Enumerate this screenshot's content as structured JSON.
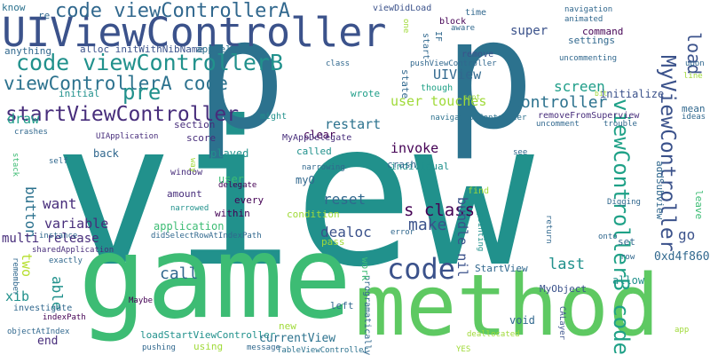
{
  "words": [
    {
      "text": "view",
      "color": "#21918c"
    },
    {
      "text": "game",
      "color": "#3dbc74"
    },
    {
      "text": "p",
      "color": "#2c728e"
    },
    {
      "text": "p",
      "color": "#2c728e"
    },
    {
      "text": "method",
      "color": "#5ec962"
    },
    {
      "text": "UIViewController",
      "color": "#3b528b"
    },
    {
      "text": "code viewControllerA",
      "color": "#31688e"
    },
    {
      "text": "code viewControllerB",
      "color": "#21918c"
    },
    {
      "text": "viewControllerA code",
      "color": "#2c728e"
    },
    {
      "text": "startViewController",
      "color": "#472d7b"
    },
    {
      "text": "pre",
      "color": "#21918c"
    },
    {
      "text": "code",
      "color": "#3b528b"
    },
    {
      "text": "viewControllerB code",
      "color": "#1fa187"
    },
    {
      "text": "MyViewController",
      "color": "#3b528b"
    },
    {
      "text": "load",
      "color": "#3b528b"
    },
    {
      "text": "user touches",
      "color": "#a0da39"
    },
    {
      "text": "controller",
      "color": "#2c728e"
    },
    {
      "text": "UIView",
      "color": "#31688e"
    },
    {
      "text": "s class",
      "color": "#440154"
    },
    {
      "text": "call",
      "color": "#31688e"
    },
    {
      "text": "make",
      "color": "#3b528b"
    },
    {
      "text": "dealoc",
      "color": "#3b528b"
    },
    {
      "text": "reset",
      "color": "#31688e"
    },
    {
      "text": "restart",
      "color": "#2c728e"
    },
    {
      "text": "invoke",
      "color": "#440154"
    },
    {
      "text": "screen",
      "color": "#1f9e89"
    },
    {
      "text": "last",
      "color": "#21918c"
    },
    {
      "text": "button",
      "color": "#2c728e"
    },
    {
      "text": "want",
      "color": "#472d7b"
    },
    {
      "text": "variable",
      "color": "#472d7b"
    },
    {
      "text": "two",
      "color": "#b5de2b"
    },
    {
      "text": "go",
      "color": "#3b528b"
    },
    {
      "text": "able",
      "color": "#21918c"
    },
    {
      "text": "multi release",
      "color": "#472d7b"
    },
    {
      "text": "bundle nil",
      "color": "#3b528b"
    },
    {
      "text": "draw",
      "color": "#1f9e89"
    },
    {
      "text": "super",
      "color": "#3b528b"
    },
    {
      "text": "settings",
      "color": "#31688e"
    },
    {
      "text": "initialize",
      "color": "#3b528b"
    },
    {
      "text": "know",
      "color": "#2c728e"
    },
    {
      "text": "re",
      "color": "#31688e"
    },
    {
      "text": "alloc initWithNibName",
      "color": "#3b528b"
    },
    {
      "text": "appDelegate",
      "color": "#2c728e"
    },
    {
      "text": "anything",
      "color": "#31688e"
    },
    {
      "text": "viewDidLoad",
      "color": "#3b528b"
    },
    {
      "text": "one",
      "color": "#a0da39"
    },
    {
      "text": "start",
      "color": "#31688e"
    },
    {
      "text": "IF",
      "color": "#31688e"
    },
    {
      "text": "time",
      "color": "#31688e"
    },
    {
      "text": "block",
      "color": "#440154"
    },
    {
      "text": "aware",
      "color": "#31688e"
    },
    {
      "text": "remove",
      "color": "#3b528b"
    },
    {
      "text": "pushViewController",
      "color": "#31688e"
    },
    {
      "text": "state",
      "color": "#31688e"
    },
    {
      "text": "though",
      "color": "#1fa187"
    },
    {
      "text": "wrote",
      "color": "#1f9e89"
    },
    {
      "text": "initial",
      "color": "#21918c"
    },
    {
      "text": "section",
      "color": "#472d7b"
    },
    {
      "text": "might",
      "color": "#21918c"
    },
    {
      "text": "clear",
      "color": "#440154"
    },
    {
      "text": "individual",
      "color": "#21918c"
    },
    {
      "text": "removeFromSuperview",
      "color": "#472d7b"
    },
    {
      "text": "navigationController",
      "color": "#2c728e"
    },
    {
      "text": "crashes",
      "color": "#31688e"
    },
    {
      "text": "UIApplication",
      "color": "#472d7b"
    },
    {
      "text": "MyAppDelegate",
      "color": "#472d7b"
    },
    {
      "text": "score",
      "color": "#472d7b"
    },
    {
      "text": "back",
      "color": "#31688e"
    },
    {
      "text": "called",
      "color": "#21918c"
    },
    {
      "text": "narrowing",
      "color": "#31688e"
    },
    {
      "text": "played",
      "color": "#21918c"
    },
    {
      "text": "myO",
      "color": "#31688e"
    },
    {
      "text": "crash",
      "color": "#31688e"
    },
    {
      "text": "window",
      "color": "#472d7b"
    },
    {
      "text": "self",
      "color": "#31688e"
    },
    {
      "text": "way",
      "color": "#a0da39"
    },
    {
      "text": "amount",
      "color": "#472d7b"
    },
    {
      "text": "user",
      "color": "#3dbc74"
    },
    {
      "text": "delegate",
      "color": "#440154"
    },
    {
      "text": "every",
      "color": "#440154"
    },
    {
      "text": "within",
      "color": "#440154"
    },
    {
      "text": "narrowed",
      "color": "#21918c"
    },
    {
      "text": "condition",
      "color": "#a0da39"
    },
    {
      "text": "application",
      "color": "#3dbc74"
    },
    {
      "text": "didSelectRowAtIndexPath",
      "color": "#31688e"
    },
    {
      "text": "pass",
      "color": "#a0da39"
    },
    {
      "text": "error",
      "color": "#31688e"
    },
    {
      "text": "instance",
      "color": "#31688e"
    },
    {
      "text": "sharedApplication",
      "color": "#472d7b"
    },
    {
      "text": "exactly",
      "color": "#31688e"
    },
    {
      "text": "remember",
      "color": "#31688e"
    },
    {
      "text": "xib",
      "color": "#21918c"
    },
    {
      "text": "investigate",
      "color": "#31688e"
    },
    {
      "text": "indexPath",
      "color": "#440154"
    },
    {
      "text": "objectAtIndex",
      "color": "#31688e"
    },
    {
      "text": "end",
      "color": "#472d7b"
    },
    {
      "text": "Maybe",
      "color": "#440154"
    },
    {
      "text": "loadStartViewController",
      "color": "#21918c"
    },
    {
      "text": "currentView",
      "color": "#2c728e"
    },
    {
      "text": "using",
      "color": "#a0da39"
    },
    {
      "text": "pushing",
      "color": "#31688e"
    },
    {
      "text": "message",
      "color": "#31688e"
    },
    {
      "text": "TableViewController",
      "color": "#2c728e"
    },
    {
      "text": "new",
      "color": "#a0da39"
    },
    {
      "text": "left",
      "color": "#31688e"
    },
    {
      "text": "programatically",
      "color": "#31688e"
    },
    {
      "text": "deallocated",
      "color": "#a0da39"
    },
    {
      "text": "MyObject",
      "color": "#3b528b"
    },
    {
      "text": "void",
      "color": "#31688e"
    },
    {
      "text": "StartView",
      "color": "#31688e"
    },
    {
      "text": "work",
      "color": "#3dbc74"
    },
    {
      "text": "allow",
      "color": "#21918c"
    },
    {
      "text": "pointing",
      "color": "#21918c"
    },
    {
      "text": "find",
      "color": "#a0da39"
    },
    {
      "text": "return",
      "color": "#31688e"
    },
    {
      "text": "Digging",
      "color": "#31688e"
    },
    {
      "text": "see",
      "color": "#31688e"
    },
    {
      "text": "addSubview",
      "color": "#31688e"
    },
    {
      "text": "onto",
      "color": "#31688e"
    },
    {
      "text": "row",
      "color": "#31688e"
    },
    {
      "text": "set",
      "color": "#31688e"
    },
    {
      "text": "0xd4f860",
      "color": "#31688e"
    },
    {
      "text": "leave",
      "color": "#3dbc74"
    },
    {
      "text": "CALayer",
      "color": "#3b528b"
    },
    {
      "text": "app",
      "color": "#a0da39"
    },
    {
      "text": "sent",
      "color": "#a0da39"
    },
    {
      "text": "bit",
      "color": "#a0da39"
    },
    {
      "text": "uncomment",
      "color": "#31688e"
    },
    {
      "text": "trouble",
      "color": "#31688e"
    },
    {
      "text": "ideas",
      "color": "#31688e"
    },
    {
      "text": "mean",
      "color": "#31688e"
    },
    {
      "text": "upon",
      "color": "#31688e"
    },
    {
      "text": "line",
      "color": "#a0da39"
    },
    {
      "text": "uncommenting",
      "color": "#31688e"
    },
    {
      "text": "animated",
      "color": "#31688e"
    },
    {
      "text": "navigation",
      "color": "#31688e"
    },
    {
      "text": "command",
      "color": "#440154"
    },
    {
      "text": "class",
      "color": "#31688e"
    },
    {
      "text": "stack",
      "color": "#3dbc74"
    },
    {
      "text": "YES",
      "color": "#a0da39"
    }
  ]
}
